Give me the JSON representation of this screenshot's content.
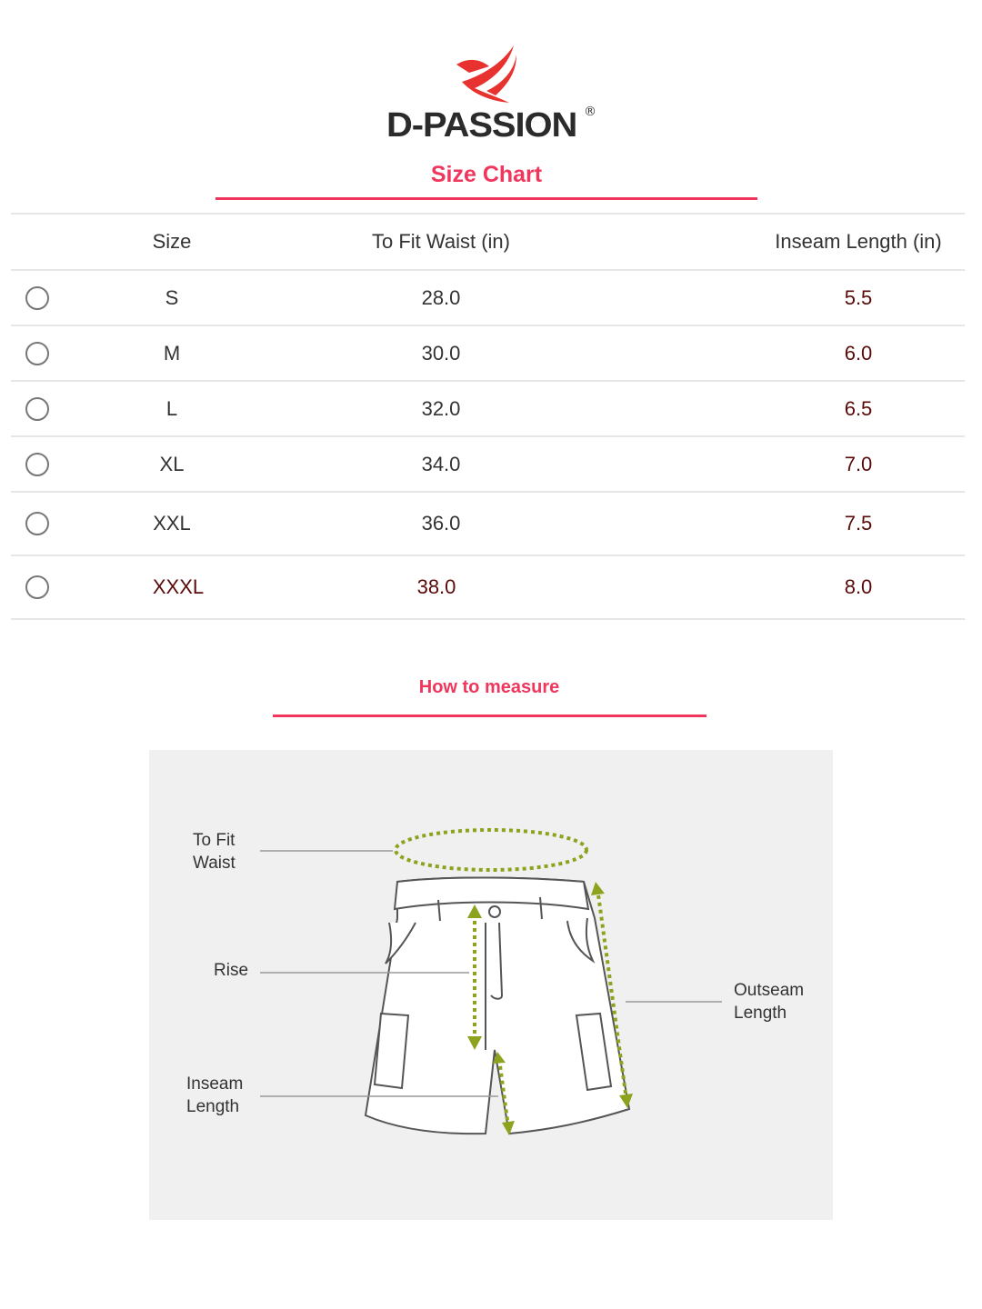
{
  "brand": {
    "name": "D-PASSION",
    "registered_mark": "®",
    "logo_color": "#e8322f"
  },
  "size_chart": {
    "title": "Size Chart",
    "accent_color": "#f0365c",
    "columns": [
      "Size",
      "To Fit Waist (in)",
      "Inseam Length (in)"
    ],
    "rows": [
      {
        "size": "S",
        "waist": "28.0",
        "inseam": "5.5"
      },
      {
        "size": "M",
        "waist": "30.0",
        "inseam": "6.0"
      },
      {
        "size": "L",
        "waist": "32.0",
        "inseam": "6.5"
      },
      {
        "size": "XL",
        "waist": "34.0",
        "inseam": "7.0"
      },
      {
        "size": "XXL",
        "waist": "36.0",
        "inseam": "7.5"
      },
      {
        "size": "XXXL",
        "waist": "38.0",
        "inseam": "8.0"
      }
    ]
  },
  "how_to_measure": {
    "title": "How to measure",
    "labels": {
      "waist": "To Fit\nWaist",
      "rise": "Rise",
      "inseam": "Inseam\nLength",
      "outseam": "Outseam\nLength"
    },
    "arrow_color": "#8ca31e"
  }
}
